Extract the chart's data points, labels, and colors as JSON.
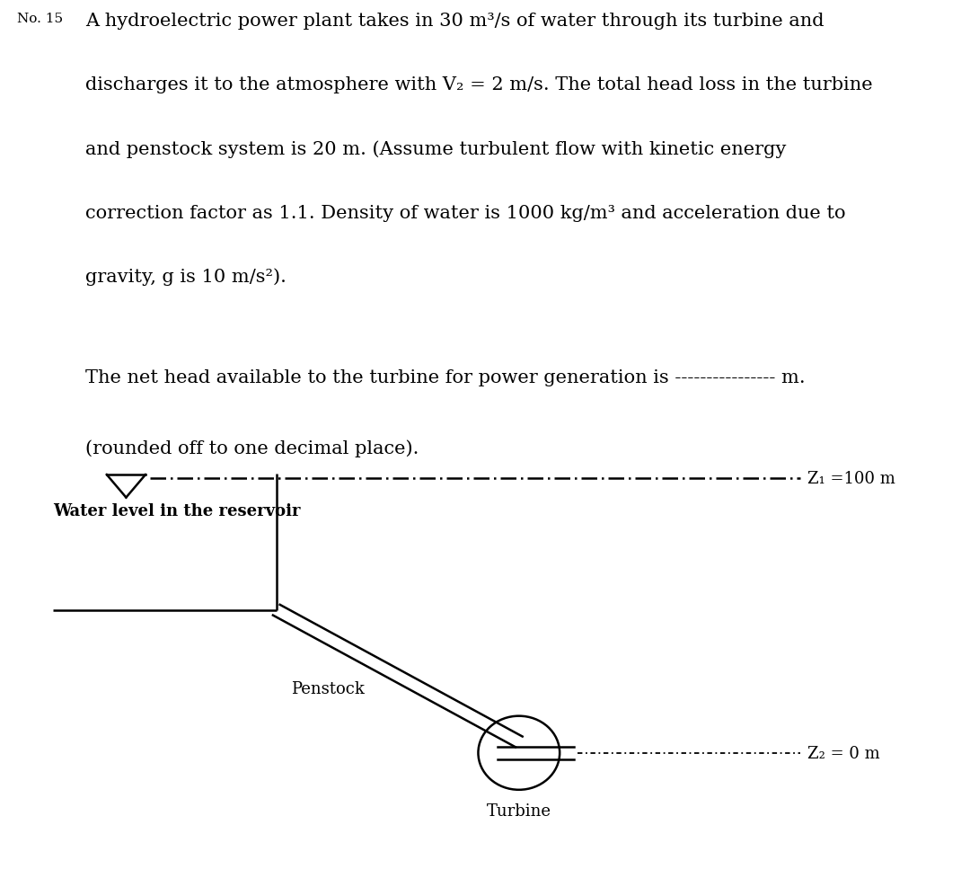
{
  "title_no": "No. 15",
  "problem_text_lines": [
    "A hydroelectric power plant takes in 30 m³/s of water through its turbine and",
    "discharges it to the atmosphere with V₂ = 2 m/s. The total head loss in the turbine",
    "and penstock system is 20 m. (Assume turbulent flow with kinetic energy",
    "correction factor as 1.1. Density of water is 1000 kg/m³ and acceleration due to",
    "gravity, g is 10 m/s²)."
  ],
  "question_line": "The net head available to the turbine for power generation is ---------------- m.",
  "subtext_line": "(rounded off to one decimal place).",
  "diagram": {
    "z1_label": "Z₁ =100 m",
    "z2_label": "Z₂ = 0 m",
    "water_level_label": "Water level in the reservoir",
    "penstock_label": "Penstock",
    "turbine_label": "Turbine"
  },
  "background_color": "#ffffff",
  "text_color": "#000000",
  "font_family": "DejaVu Serif",
  "font_size_main": 15,
  "font_size_diagram": 13
}
